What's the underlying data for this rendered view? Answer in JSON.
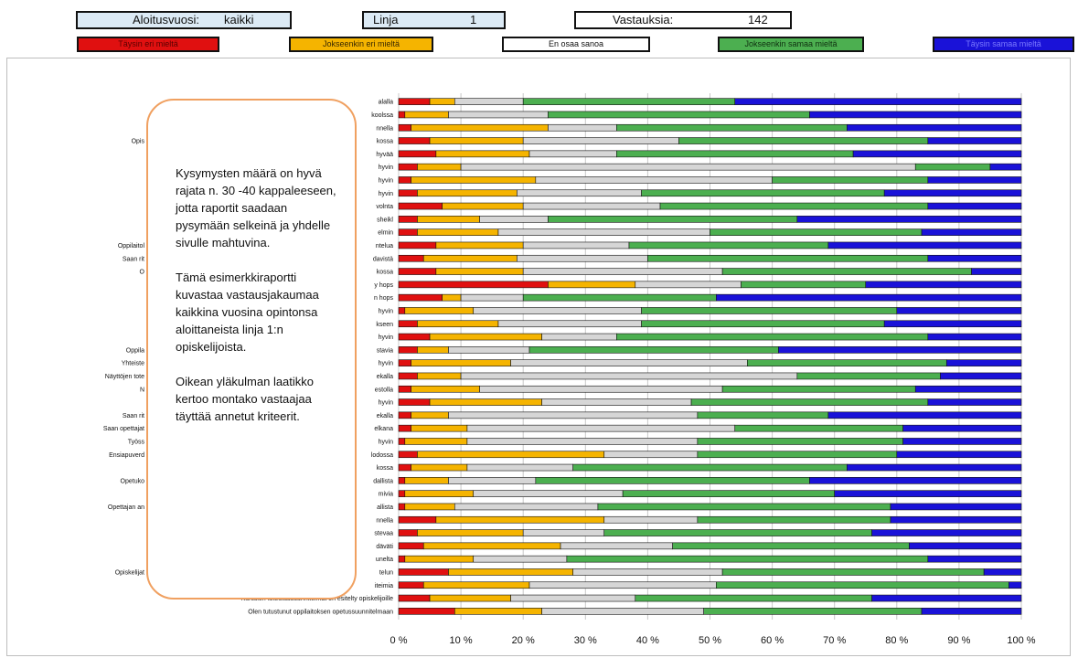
{
  "header": {
    "start_label": "Aloitusvuosi:",
    "start_value": "kaikki",
    "line_label": "Linja",
    "line_value": "1",
    "count_label": "Vastauksia:",
    "count_value": "142"
  },
  "chart_data": {
    "type": "bar",
    "stacked": true,
    "orientation": "horizontal",
    "legend": [
      {
        "label": "Täysin eri mieltä",
        "color": "#e01010"
      },
      {
        "label": "Jokseenkin eri mieltä",
        "color": "#f5b400"
      },
      {
        "label": "En osaa sanoa",
        "color": "#ffffff"
      },
      {
        "label": "Jokseenkin samaa mieltä",
        "color": "#4caf50"
      },
      {
        "label": "Täysin samaa mieltä",
        "color": "#1a12d8"
      }
    ],
    "legend_placement": "top",
    "segment_colors": [
      "#e01010",
      "#f5b400",
      "#d6d6d6",
      "#4caf50",
      "#1a12d8"
    ],
    "xlim": [
      0,
      100
    ],
    "x_ticks": [
      "0 %",
      "10 %",
      "20 %",
      "30 %",
      "40 %",
      "50 %",
      "60 %",
      "70 %",
      "80 %",
      "90 %",
      "100 %"
    ],
    "grid": true,
    "categories": [
      "alalla",
      "koolssa",
      "nnella",
      "kossa",
      "hyvää",
      "hyvin",
      "hyvin",
      "hyvin",
      "volnta",
      "sheikl",
      "elmin",
      "ntelua",
      "davistä",
      "kossa",
      "y hops",
      "n hops",
      "hyvin",
      "kseen",
      "hyvin",
      "stavia",
      "hyvin",
      "ekalla",
      "estolla",
      "hyvin",
      "ekalla",
      "elkana",
      "hyvin",
      "lodossa",
      "kossa",
      "dallista",
      "mivia",
      "allista",
      "nnella",
      "stevaa",
      "däväti",
      "unelta",
      "telun",
      "iteimia",
      "Kurssien toteutussuunnitelmat on esitelty opiskelijoille",
      "Olen tutustunut oppilaitoksen opetussuunnitelmaan"
    ],
    "left_fragments": [
      {
        "row": 3,
        "text": "Opis"
      },
      {
        "row": 11,
        "text": "Oppilaitol"
      },
      {
        "row": 12,
        "text": "Saan rit"
      },
      {
        "row": 13,
        "text": "O"
      },
      {
        "row": 19,
        "text": "Oppila"
      },
      {
        "row": 20,
        "text": "Yhteiste"
      },
      {
        "row": 21,
        "text": "Näyttöjen tote"
      },
      {
        "row": 22,
        "text": "N"
      },
      {
        "row": 24,
        "text": "Saan rit"
      },
      {
        "row": 25,
        "text": "Saan opettajat"
      },
      {
        "row": 26,
        "text": "Työss"
      },
      {
        "row": 27,
        "text": "Ensiapuverd"
      },
      {
        "row": 29,
        "text": "Opetuko"
      },
      {
        "row": 31,
        "text": "Opettajan an"
      },
      {
        "row": 36,
        "text": "Opiskelijat"
      }
    ],
    "series": [
      {
        "name": "Täysin eri mieltä",
        "values": [
          5,
          1,
          2,
          5,
          6,
          3,
          2,
          3,
          7,
          3,
          3,
          6,
          4,
          6,
          24,
          7,
          1,
          3,
          5,
          3,
          2,
          3,
          2,
          5,
          2,
          2,
          1,
          3,
          2,
          1,
          1,
          1,
          6,
          3,
          4,
          1,
          8,
          4,
          5,
          9
        ]
      },
      {
        "name": "Jokseenkin eri mieltä",
        "values": [
          4,
          7,
          22,
          15,
          15,
          7,
          20,
          16,
          13,
          10,
          13,
          14,
          15,
          14,
          14,
          3,
          11,
          13,
          18,
          5,
          16,
          7,
          11,
          18,
          6,
          9,
          10,
          30,
          9,
          7,
          11,
          8,
          27,
          17,
          22,
          11,
          20,
          17,
          13,
          14
        ]
      },
      {
        "name": "En osaa sanoa",
        "values": [
          11,
          16,
          11,
          25,
          14,
          73,
          38,
          20,
          22,
          11,
          34,
          17,
          21,
          32,
          17,
          10,
          27,
          23,
          12,
          13,
          38,
          54,
          39,
          24,
          40,
          43,
          37,
          15,
          17,
          14,
          24,
          23,
          15,
          13,
          18,
          15,
          24,
          30,
          20,
          26
        ]
      },
      {
        "name": "Jokseenkin samaa mieltä",
        "values": [
          34,
          42,
          37,
          40,
          38,
          12,
          25,
          39,
          43,
          40,
          34,
          32,
          45,
          40,
          20,
          31,
          41,
          39,
          50,
          40,
          32,
          23,
          31,
          38,
          21,
          27,
          33,
          32,
          44,
          44,
          34,
          47,
          31,
          43,
          38,
          58,
          42,
          47,
          38,
          35
        ]
      },
      {
        "name": "Täysin samaa mieltä",
        "values": [
          46,
          34,
          28,
          15,
          27,
          5,
          15,
          22,
          15,
          36,
          16,
          31,
          15,
          8,
          25,
          49,
          20,
          22,
          15,
          39,
          12,
          13,
          17,
          15,
          31,
          19,
          19,
          20,
          28,
          34,
          30,
          21,
          21,
          24,
          18,
          15,
          6,
          2,
          24,
          16
        ]
      }
    ]
  },
  "callout": {
    "p1": "Kysymysten määrä on hyvä rajata n. 30 -40 kappaleeseen, jotta raportit saadaan pysymään selkeinä ja yhdelle sivulle mahtuvina.",
    "p2": "Tämä esimerkkiraportti kuvastaa vastausjakaumaa kaikkina vuosina opintonsa aloittaneista linja 1:n opiskelijoista.",
    "p3": "Oikean yläkulman laatikko kertoo montako vastaajaa täyttää annetut kriteerit."
  }
}
